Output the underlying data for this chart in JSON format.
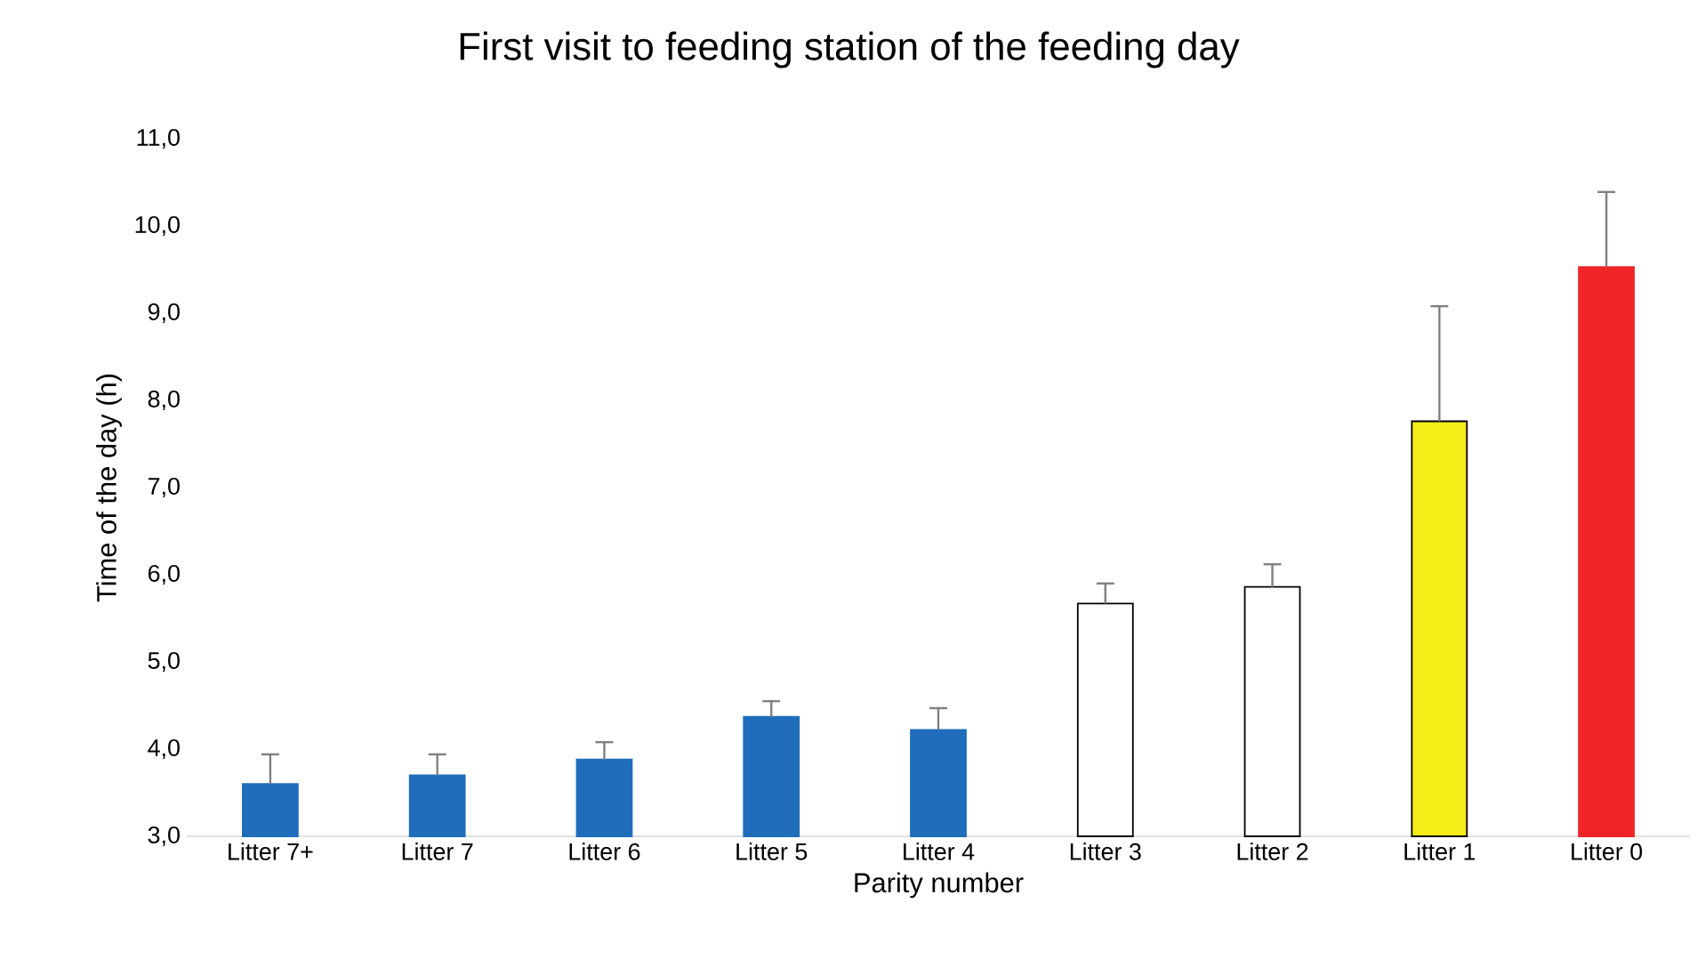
{
  "chart_data": {
    "type": "bar",
    "title": "First visit to feeding station of the feeding day",
    "xlabel": "Parity number",
    "ylabel": "Time of the day (h)",
    "categories": [
      "Litter 7+",
      "Litter 7",
      "Litter 6",
      "Litter 5",
      "Litter 4",
      "Litter 3",
      "Litter 2",
      "Litter 1",
      "Litter 0"
    ],
    "values": [
      3.6,
      3.7,
      3.88,
      4.37,
      4.22,
      5.67,
      5.86,
      7.76,
      9.53
    ],
    "errors": [
      [
        3.6,
        3.94
      ],
      [
        3.7,
        3.94
      ],
      [
        3.88,
        4.08
      ],
      [
        4.37,
        4.55
      ],
      [
        4.22,
        4.47
      ],
      [
        5.67,
        5.9
      ],
      [
        5.86,
        6.12
      ],
      [
        7.76,
        9.08
      ],
      [
        9.53,
        10.39
      ]
    ],
    "colors": [
      "#1f6dbb",
      "#1f6dbb",
      "#1f6dbb",
      "#1f6dbb",
      "#1f6dbb",
      "#ffffff",
      "#ffffff",
      "#f5ec18",
      "#ee2426"
    ],
    "ylim": [
      3,
      11
    ],
    "yticks": [
      {
        "value": 3,
        "label": "3,0"
      },
      {
        "value": 4,
        "label": "4,0"
      },
      {
        "value": 5,
        "label": "5,0"
      },
      {
        "value": 6,
        "label": "6,0"
      },
      {
        "value": 7,
        "label": "7,0"
      },
      {
        "value": 8,
        "label": "8,0"
      },
      {
        "value": 9,
        "label": "9,0"
      },
      {
        "value": 10,
        "label": "10,0"
      },
      {
        "value": 11,
        "label": "11,0"
      }
    ]
  }
}
